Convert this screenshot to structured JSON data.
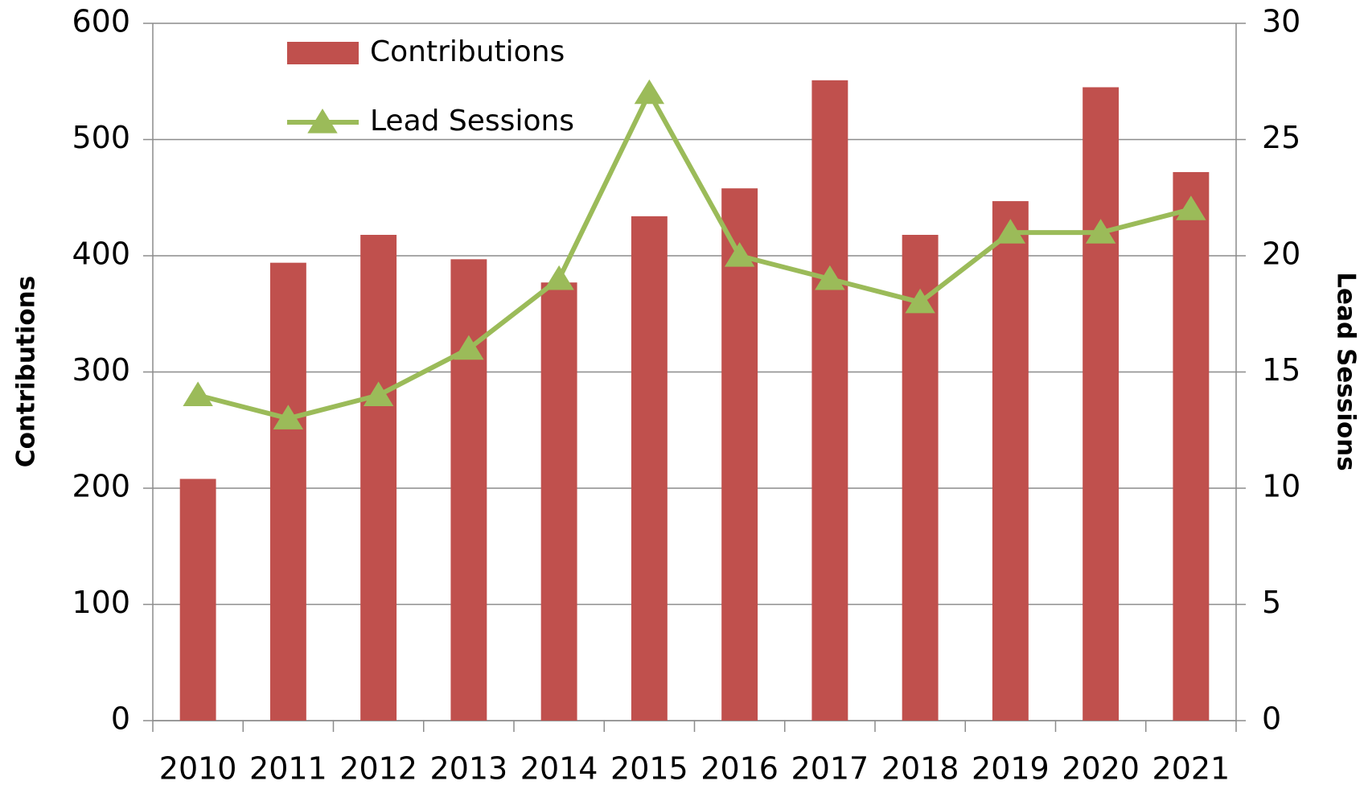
{
  "chart_data": {
    "type": "bar_line",
    "categories": [
      "2010",
      "2011",
      "2012",
      "2013",
      "2014",
      "2015",
      "2016",
      "2017",
      "2018",
      "2019",
      "2020",
      "2021"
    ],
    "series": [
      {
        "name": "Contributions",
        "type": "bar",
        "color": "#c0504d",
        "values": [
          208,
          394,
          418,
          397,
          377,
          434,
          458,
          551,
          418,
          447,
          545,
          472
        ]
      },
      {
        "name": "Lead Sessions",
        "type": "line",
        "axis": "y2",
        "color": "#9bbb59",
        "values": [
          14,
          13,
          14,
          16,
          19,
          27,
          20,
          19,
          18,
          21,
          21,
          22
        ]
      }
    ],
    "ylabel": "Contributions",
    "y2label": "Lead Sessions",
    "ylim": [
      0,
      600
    ],
    "yticks": [
      0,
      100,
      200,
      300,
      400,
      500,
      600
    ],
    "y2lim": [
      0,
      30
    ],
    "y2ticks": [
      0,
      5,
      10,
      15,
      20,
      25,
      30
    ],
    "grid": true,
    "legend": "upper left"
  }
}
